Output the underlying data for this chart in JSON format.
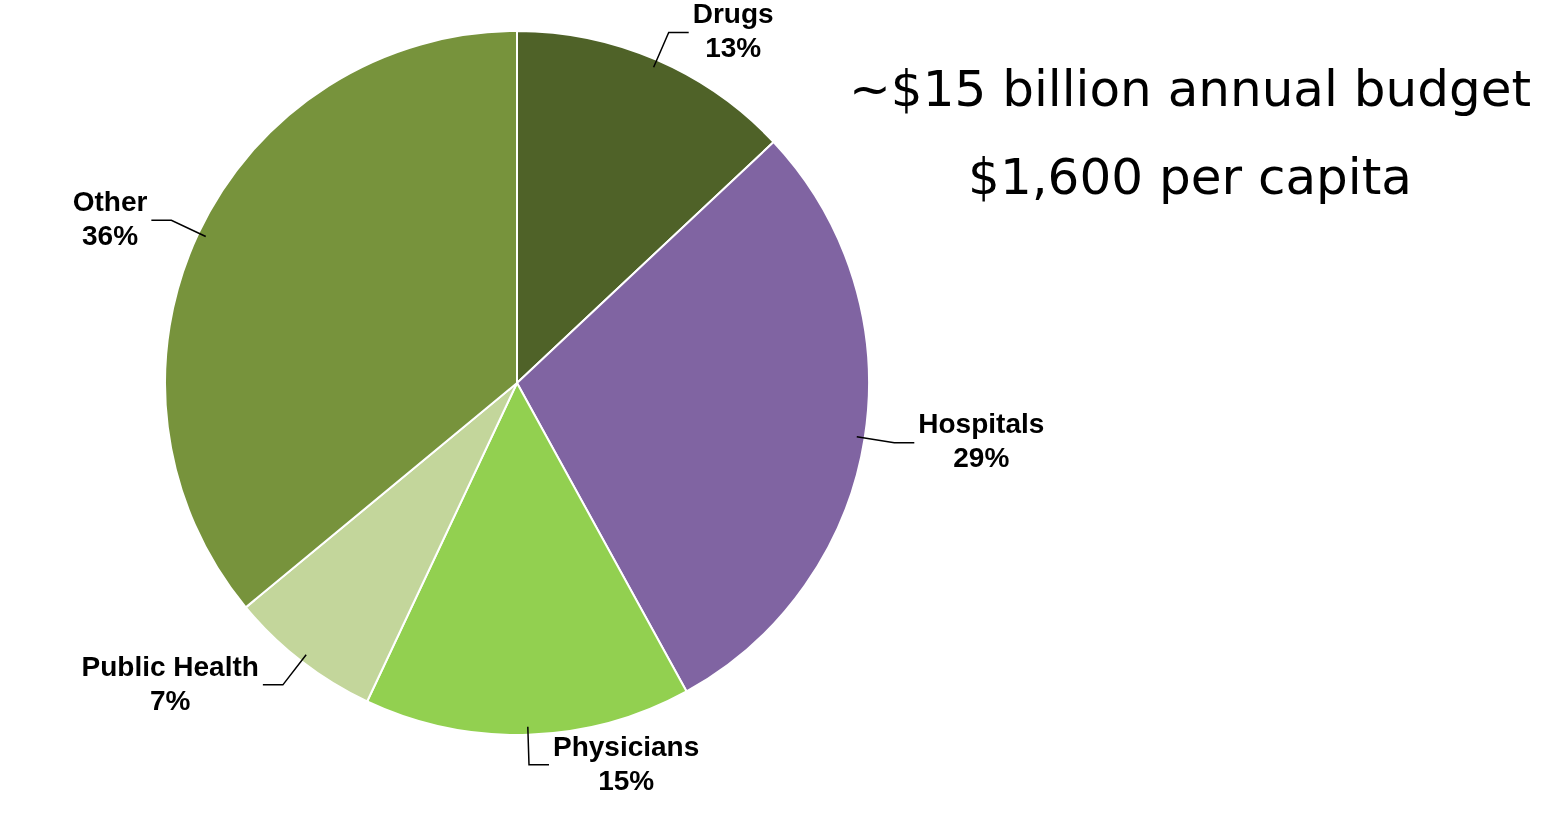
{
  "chart_data": {
    "type": "pie",
    "categories": [
      "Drugs",
      "Hospitals",
      "Physicians",
      "Public Health",
      "Other"
    ],
    "values": [
      13,
      29,
      15,
      7,
      36
    ],
    "value_labels": [
      "13%",
      "29%",
      "15%",
      "7%",
      "36%"
    ],
    "colors": [
      "#4f6228",
      "#8064a2",
      "#92d050",
      "#c3d69b",
      "#77933c"
    ],
    "annotations": [
      "~$15 billion annual budget",
      "$1,600 per capita"
    ],
    "legend": false
  }
}
